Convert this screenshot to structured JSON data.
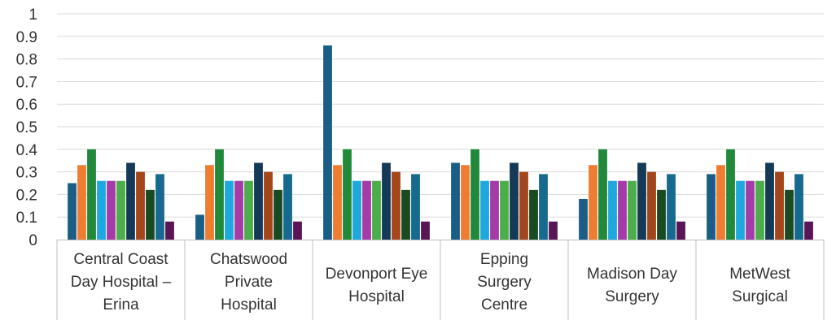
{
  "chart_data": {
    "type": "bar",
    "title": "",
    "xlabel": "",
    "ylabel": "",
    "ylim": [
      0,
      1
    ],
    "yticks": [
      "0",
      "0.1",
      "0.2",
      "0.3",
      "0.4",
      "0.5",
      "0.6",
      "0.7",
      "0.8",
      "0.9",
      "1"
    ],
    "grid": true,
    "legend": "none",
    "categories": [
      "Central Coast Day Hospital – Erina",
      "Chatswood Private Hospital",
      "Devonport Eye Hospital",
      "Epping Surgery Centre",
      "Madison Day Surgery",
      "MetWest Surgical"
    ],
    "category_lines": [
      [
        "Central Coast",
        "Day Hospital –",
        "Erina"
      ],
      [
        "Chatswood",
        "Private",
        "Hospital"
      ],
      [
        "Devonport Eye",
        "Hospital"
      ],
      [
        "Epping",
        "Surgery",
        "Centre"
      ],
      [
        "Madison Day",
        "Surgery"
      ],
      [
        "MetWest",
        "Surgical"
      ]
    ],
    "series": [
      {
        "color": "#1b5e85",
        "values": [
          0.25,
          0.11,
          0.86,
          0.34,
          0.18,
          0.29
        ]
      },
      {
        "color": "#ef7d31",
        "values": [
          0.33,
          0.33,
          0.33,
          0.33,
          0.33,
          0.33
        ]
      },
      {
        "color": "#218a3a",
        "values": [
          0.4,
          0.4,
          0.4,
          0.4,
          0.4,
          0.4
        ]
      },
      {
        "color": "#1fa8e0",
        "values": [
          0.26,
          0.26,
          0.26,
          0.26,
          0.26,
          0.26
        ]
      },
      {
        "color": "#a53ba7",
        "values": [
          0.26,
          0.26,
          0.26,
          0.26,
          0.26,
          0.26
        ]
      },
      {
        "color": "#4cae4a",
        "values": [
          0.26,
          0.26,
          0.26,
          0.26,
          0.26,
          0.26
        ]
      },
      {
        "color": "#143a57",
        "values": [
          0.34,
          0.34,
          0.34,
          0.34,
          0.34,
          0.34
        ]
      },
      {
        "color": "#a4461b",
        "values": [
          0.3,
          0.3,
          0.3,
          0.3,
          0.3,
          0.3
        ]
      },
      {
        "color": "#194a22",
        "values": [
          0.22,
          0.22,
          0.22,
          0.22,
          0.22,
          0.22
        ]
      },
      {
        "color": "#16698f",
        "values": [
          0.29,
          0.29,
          0.29,
          0.29,
          0.29,
          0.29
        ]
      },
      {
        "color": "#5a1555",
        "values": [
          0.08,
          0.08,
          0.08,
          0.08,
          0.08,
          0.08
        ]
      }
    ]
  }
}
